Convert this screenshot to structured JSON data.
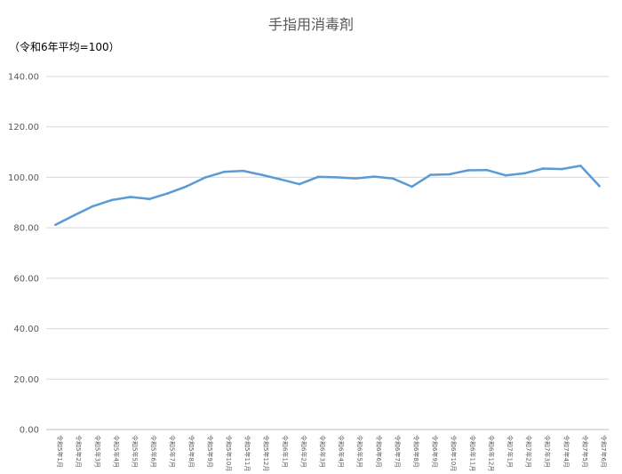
{
  "chart_data": {
    "type": "line",
    "title": "手指用消毒剤",
    "subtitle": "（令和6年平均=100）",
    "xlabel": "",
    "ylabel": "",
    "ylim": [
      0,
      140
    ],
    "yticks": [
      0,
      20,
      40,
      60,
      80,
      100,
      120,
      140
    ],
    "ytick_labels": [
      "0.00",
      "20.00",
      "40.00",
      "60.00",
      "80.00",
      "100.00",
      "120.00",
      "140.00"
    ],
    "grid": true,
    "legend": "none",
    "categories": [
      "令和5年1月",
      "令和5年2月",
      "令和5年3月",
      "令和5年4月",
      "令和5年5月",
      "令和5年6月",
      "令和5年7月",
      "令和5年8月",
      "令和5年9月",
      "令和5年10月",
      "令和5年11月",
      "令和5年12月",
      "令和6年1月",
      "令和6年2月",
      "令和6年3月",
      "令和6年4月",
      "令和6年5月",
      "令和6年6月",
      "令和6年7月",
      "令和6年8月",
      "令和6年9月",
      "令和6年10月",
      "令和6年11月",
      "令和6年12月",
      "令和7年1月",
      "令和7年2月",
      "令和7年3月",
      "令和7年4月",
      "令和7年5月",
      "令和7年6月"
    ],
    "series": [
      {
        "color": "#5B9BD5",
        "values": [
          81.2,
          85.0,
          88.6,
          91.0,
          92.2,
          91.4,
          93.7,
          96.5,
          100.0,
          102.2,
          102.6,
          101.0,
          99.2,
          97.3,
          100.2,
          100.0,
          99.6,
          100.3,
          99.5,
          96.3,
          101.0,
          101.2,
          102.8,
          102.9,
          100.8,
          101.6,
          103.5,
          103.3,
          104.6,
          96.6
        ]
      }
    ]
  }
}
